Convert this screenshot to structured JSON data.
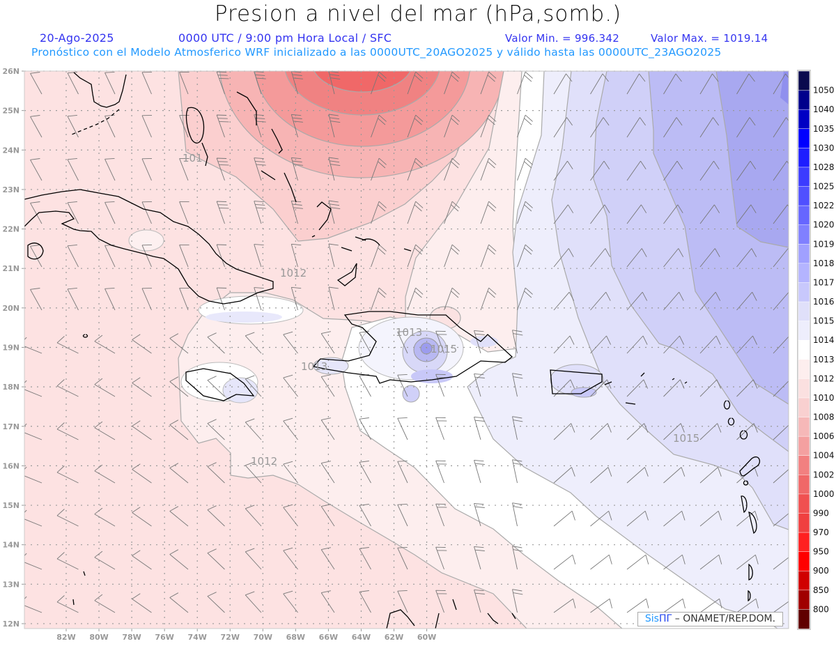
{
  "header": {
    "title": "Presion a nivel del mar (hPa,somb.)",
    "date": "20-Ago-2025",
    "time": "0000 UTC / 9:00 pm Hora Local / SFC",
    "min": "Valor Min. = 996.342",
    "max": "Valor Max. = 1019.14",
    "subtitle": "Pronóstico con el Modelo Atmosferico WRF inicializado a las 0000UTC_20AGO2025 y válido hasta las  0000UTC_23AGO2025"
  },
  "axes": {
    "lat_labels": [
      "26N",
      "25N",
      "24N",
      "23N",
      "22N",
      "21N",
      "20N",
      "19N",
      "18N",
      "17N",
      "16N",
      "15N",
      "14N",
      "13N",
      "12N"
    ],
    "lon_labels": [
      "82W",
      "80W",
      "78W",
      "76W",
      "74W",
      "72W",
      "70W",
      "68W",
      "66W",
      "64W",
      "62W",
      "60W"
    ]
  },
  "contour_labels": [
    "1012",
    "1012",
    "1013",
    "1015",
    "1013",
    "1015",
    "101"
  ],
  "colorbar": {
    "labels": [
      "1050",
      "1040",
      "1035",
      "1030",
      "1028",
      "1025",
      "1022",
      "1020",
      "1019",
      "1018",
      "1017",
      "1016",
      "1015",
      "1014",
      "1013",
      "1012",
      "1010",
      "1008",
      "1006",
      "1004",
      "1002",
      "1000",
      "990",
      "970",
      "950",
      "900",
      "850",
      "800"
    ],
    "colors": [
      "#0a0a4e",
      "#00008c",
      "#0000c4",
      "#0000ff",
      "#1e1eff",
      "#3c3cff",
      "#5050ff",
      "#6666ff",
      "#8080ff",
      "#a0a0ff",
      "#b4b4ff",
      "#c8c8fc",
      "#e0e0fa",
      "#eeeefc",
      "#ffffff",
      "#fdeeee",
      "#fbe0e0",
      "#f9d0d0",
      "#f6b8b8",
      "#f4a0a0",
      "#f28080",
      "#f06868",
      "#f05050",
      "#f04040",
      "#ff2020",
      "#ff0000",
      "#d00000",
      "#a00000",
      "#600000"
    ]
  },
  "logo": {
    "part1": "Sis",
    "part2": "ΠΓ",
    "part3": " –  ONAMET/REP.DOM."
  }
}
